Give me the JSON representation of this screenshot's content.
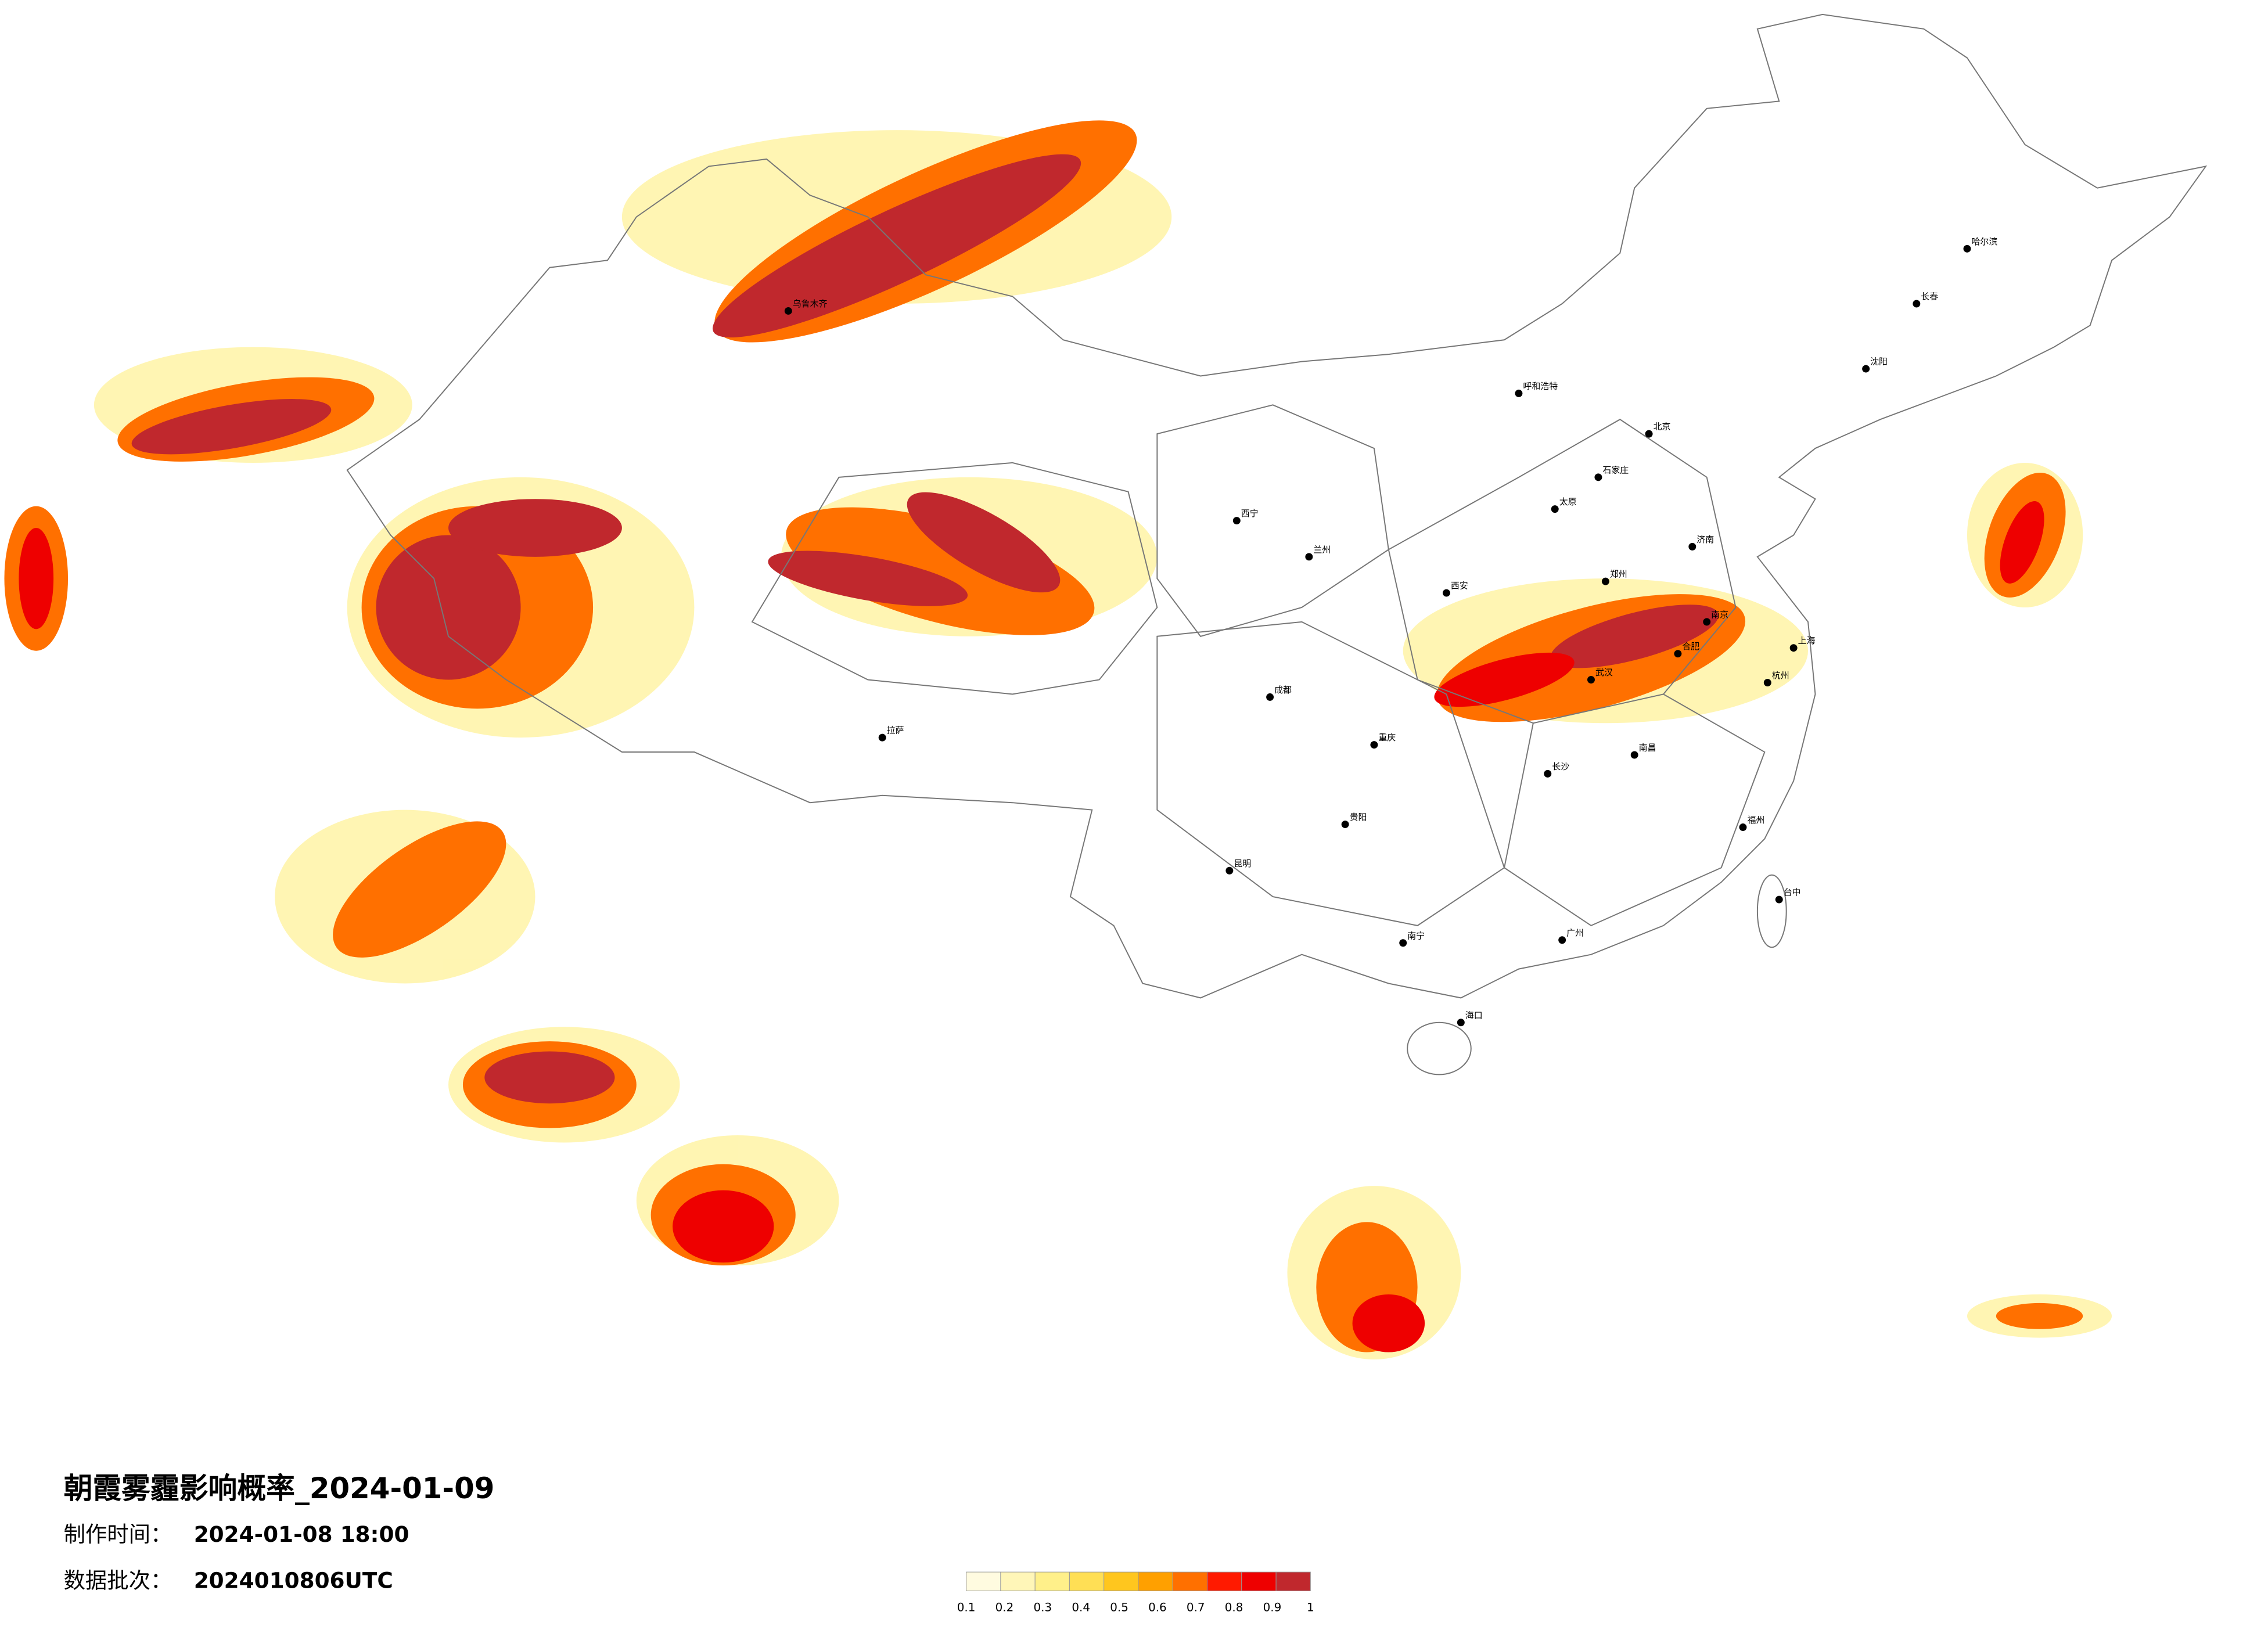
{
  "title": "朝霞雾霾影响概率_2024-01-09",
  "made_time": {
    "label": "制作时间：",
    "value": "2024-01-08 18:00"
  },
  "batch": {
    "label": "数据批次：",
    "value": "2024010806UTC"
  },
  "legend": {
    "ticks": [
      0.1,
      0.2,
      0.3,
      0.4,
      0.5,
      0.6,
      0.7,
      0.8,
      0.9,
      1
    ],
    "colors": [
      "#fffbe0",
      "#fff6b8",
      "#fff08a",
      "#ffdf55",
      "#ffc61e",
      "#ffa000",
      "#ff7000",
      "#ff1a00",
      "#ee0000",
      "#c0282d"
    ]
  },
  "cities": [
    "乌鲁木齐",
    "拉萨",
    "西宁",
    "兰州",
    "西安",
    "呼和浩特",
    "北京",
    "石家庄",
    "太原",
    "济南",
    "郑州",
    "南京",
    "上海",
    "合肥",
    "杭州",
    "武汉",
    "南昌",
    "长沙",
    "福州",
    "成都",
    "重庆",
    "贵阳",
    "昆明",
    "南宁",
    "广州",
    "海口",
    "沈阳",
    "长春",
    "哈尔滨",
    "台中"
  ]
}
